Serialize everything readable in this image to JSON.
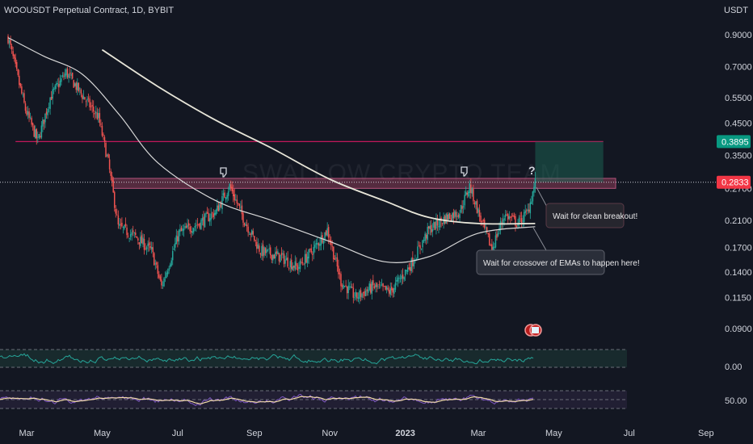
{
  "header": {
    "title": "WOOUSDT Perpetual Contract, 1D, BYBIT",
    "currency": "USDT"
  },
  "watermark": "SWALLOW CRYPTO TEAM",
  "colors": {
    "background": "#131722",
    "up": "#26a69a",
    "down": "#ef5350",
    "resistance_zone": "#8c3d57",
    "target_line": "#c2185b",
    "target_box": "#1d6e5c",
    "ema_long": "#e8e6d9",
    "ema_short": "#d8d8d8",
    "current_price_tag": "#f23645",
    "target_price_tag": "#089981"
  },
  "price_tags": {
    "target": "0.3895",
    "current": "0.2833"
  },
  "annotations": {
    "question_mark": "?",
    "breakout_note": "Wait for clean breakout!",
    "ema_note": "Wait for crossover of EMAs to happen here!"
  },
  "chart_data": {
    "type": "candlestick",
    "symbol": "WOOUSDT",
    "timeframe": "1D",
    "exchange": "BYBIT",
    "y_scale": "log",
    "y_ticks": [
      "0.9000",
      "0.7000",
      "0.5500",
      "0.4500",
      "0.3500",
      "0.2700",
      "0.2100",
      "0.1700",
      "0.1400",
      "0.1150",
      "0.0900"
    ],
    "x_ticks": [
      {
        "label": "Mar",
        "bold": false
      },
      {
        "label": "May",
        "bold": false
      },
      {
        "label": "Jul",
        "bold": false
      },
      {
        "label": "Sep",
        "bold": false
      },
      {
        "label": "Nov",
        "bold": false
      },
      {
        "label": "2023",
        "bold": true
      },
      {
        "label": "Mar",
        "bold": false
      },
      {
        "label": "May",
        "bold": false
      },
      {
        "label": "Jul",
        "bold": false
      },
      {
        "label": "Sep",
        "bold": false
      }
    ],
    "price_path": [
      {
        "date": "2022-02-14",
        "price": 0.88
      },
      {
        "date": "2022-02-28",
        "price": 0.5
      },
      {
        "date": "2022-03-10",
        "price": 0.39
      },
      {
        "date": "2022-03-20",
        "price": 0.55
      },
      {
        "date": "2022-04-02",
        "price": 0.67
      },
      {
        "date": "2022-04-15",
        "price": 0.56
      },
      {
        "date": "2022-04-28",
        "price": 0.47
      },
      {
        "date": "2022-05-06",
        "price": 0.33
      },
      {
        "date": "2022-05-14",
        "price": 0.2
      },
      {
        "date": "2022-05-28",
        "price": 0.185
      },
      {
        "date": "2022-06-10",
        "price": 0.165
      },
      {
        "date": "2022-06-18",
        "price": 0.125
      },
      {
        "date": "2022-07-02",
        "price": 0.19
      },
      {
        "date": "2022-07-18",
        "price": 0.205
      },
      {
        "date": "2022-08-01",
        "price": 0.225
      },
      {
        "date": "2022-08-12",
        "price": 0.275
      },
      {
        "date": "2022-08-24",
        "price": 0.21
      },
      {
        "date": "2022-09-06",
        "price": 0.165
      },
      {
        "date": "2022-09-22",
        "price": 0.158
      },
      {
        "date": "2022-10-06",
        "price": 0.145
      },
      {
        "date": "2022-10-20",
        "price": 0.17
      },
      {
        "date": "2022-10-30",
        "price": 0.195
      },
      {
        "date": "2022-11-10",
        "price": 0.13
      },
      {
        "date": "2022-11-22",
        "price": 0.115
      },
      {
        "date": "2022-12-06",
        "price": 0.125
      },
      {
        "date": "2022-12-20",
        "price": 0.12
      },
      {
        "date": "2023-01-06",
        "price": 0.15
      },
      {
        "date": "2023-01-20",
        "price": 0.195
      },
      {
        "date": "2023-02-03",
        "price": 0.215
      },
      {
        "date": "2023-02-14",
        "price": 0.225
      },
      {
        "date": "2023-02-22",
        "price": 0.275
      },
      {
        "date": "2023-03-04",
        "price": 0.205
      },
      {
        "date": "2023-03-12",
        "price": 0.168
      },
      {
        "date": "2023-03-22",
        "price": 0.22
      },
      {
        "date": "2023-04-02",
        "price": 0.205
      },
      {
        "date": "2023-04-10",
        "price": 0.225
      },
      {
        "date": "2023-04-16",
        "price": 0.2833
      }
    ],
    "ema_long": [
      {
        "date": "2022-05-01",
        "price": 0.8
      },
      {
        "date": "2022-06-15",
        "price": 0.6
      },
      {
        "date": "2022-08-01",
        "price": 0.46
      },
      {
        "date": "2022-09-15",
        "price": 0.37
      },
      {
        "date": "2022-11-01",
        "price": 0.29
      },
      {
        "date": "2022-12-15",
        "price": 0.245
      },
      {
        "date": "2023-01-20",
        "price": 0.215
      },
      {
        "date": "2023-03-01",
        "price": 0.205
      },
      {
        "date": "2023-04-16",
        "price": 0.205
      }
    ],
    "ema_short": [
      {
        "date": "2022-02-14",
        "price": 0.88
      },
      {
        "date": "2022-03-15",
        "price": 0.76
      },
      {
        "date": "2022-04-15",
        "price": 0.66
      },
      {
        "date": "2022-05-15",
        "price": 0.48
      },
      {
        "date": "2022-06-15",
        "price": 0.33
      },
      {
        "date": "2022-08-01",
        "price": 0.245
      },
      {
        "date": "2022-09-15",
        "price": 0.21
      },
      {
        "date": "2022-11-01",
        "price": 0.178
      },
      {
        "date": "2022-12-15",
        "price": 0.152
      },
      {
        "date": "2023-01-20",
        "price": 0.158
      },
      {
        "date": "2023-03-01",
        "price": 0.19
      },
      {
        "date": "2023-04-16",
        "price": 0.2
      }
    ],
    "resistance_zone": {
      "low": 0.27,
      "high": 0.292,
      "from": "2022-05-10",
      "to": "2023-06-20"
    },
    "target_line": {
      "price": 0.3895,
      "from": "2022-02-20",
      "to": "2023-06-10"
    },
    "target_box": {
      "low": 0.2833,
      "high": 0.3895,
      "from": "2023-04-16",
      "to": "2023-06-10"
    },
    "current_price": 0.2833,
    "indicator_1": {
      "level_label": "0.00"
    },
    "indicator_2": {
      "level_label": "50.00"
    }
  }
}
